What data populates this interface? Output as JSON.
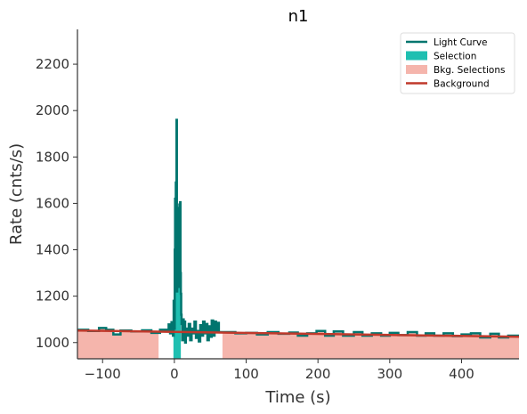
{
  "chart_data": {
    "type": "line",
    "title": "n1",
    "xlabel": "Time (s)",
    "ylabel": "Rate (cnts/s)",
    "xlim": [
      -135,
      480
    ],
    "ylim": [
      930,
      2350
    ],
    "xticks": [
      -100,
      0,
      100,
      200,
      300,
      400
    ],
    "xtick_labels": [
      "−100",
      "0",
      "100",
      "200",
      "300",
      "400"
    ],
    "yticks": [
      1000,
      1200,
      1400,
      1600,
      1800,
      2000,
      2200
    ],
    "ytick_labels": [
      "1000",
      "1200",
      "1400",
      "1600",
      "1800",
      "2000",
      "2200"
    ],
    "grid": false,
    "legend_position": "top-right",
    "colors": {
      "light_curve": "#00756e",
      "selection": "#1fbfb1",
      "bkg_selection": "#f5b5ac",
      "background": "#c0392b"
    },
    "legend": [
      {
        "label": "Light Curve",
        "kind": "line",
        "color": "#00756e"
      },
      {
        "label": "Selection",
        "kind": "patch",
        "color": "#1fbfb1"
      },
      {
        "label": "Bkg. Selections",
        "kind": "patch",
        "color": "#f5b5ac"
      },
      {
        "label": "Background",
        "kind": "line",
        "color": "#c0392b"
      }
    ],
    "selection": [
      -1.3,
      9.0
    ],
    "bkg_selections": [
      [
        -135,
        -22
      ],
      [
        67,
        480
      ]
    ],
    "background_fit": {
      "x": [
        -135,
        480
      ],
      "y": [
        1052,
        1025
      ]
    },
    "series": [
      {
        "name": "Light Curve",
        "steps": [
          [
            -135,
            1055
          ],
          [
            -120,
            1050
          ],
          [
            -105,
            1063
          ],
          [
            -95,
            1055
          ],
          [
            -85,
            1035
          ],
          [
            -75,
            1052
          ],
          [
            -60,
            1048
          ],
          [
            -45,
            1053
          ],
          [
            -32,
            1042
          ],
          [
            -20,
            1055
          ],
          [
            -10,
            1050
          ],
          [
            -8,
            1078
          ],
          [
            -6,
            1040
          ],
          [
            -4,
            1088
          ],
          [
            -2,
            1030
          ],
          [
            -1,
            1180
          ],
          [
            0,
            1060
          ],
          [
            0.5,
            1400
          ],
          [
            1,
            1620
          ],
          [
            1.5,
            1300
          ],
          [
            2,
            1690
          ],
          [
            2.5,
            1500
          ],
          [
            3,
            1960
          ],
          [
            3.5,
            1220
          ],
          [
            4,
            1480
          ],
          [
            4.5,
            1360
          ],
          [
            5,
            1540
          ],
          [
            5.5,
            1240
          ],
          [
            6,
            1580
          ],
          [
            6.5,
            1360
          ],
          [
            7,
            1595
          ],
          [
            7.5,
            1410
          ],
          [
            8,
            1605
          ],
          [
            8.5,
            1300
          ],
          [
            9,
            1210
          ],
          [
            9.5,
            1120
          ],
          [
            10,
            1080
          ],
          [
            11,
            1010
          ],
          [
            12,
            1100
          ],
          [
            13,
            1040
          ],
          [
            14,
            1090
          ],
          [
            15,
            1000
          ],
          [
            16,
            1060
          ],
          [
            18,
            1030
          ],
          [
            20,
            1080
          ],
          [
            22,
            1010
          ],
          [
            24,
            1060
          ],
          [
            26,
            1040
          ],
          [
            28,
            1090
          ],
          [
            30,
            1020
          ],
          [
            32,
            1050
          ],
          [
            34,
            1005
          ],
          [
            36,
            1075
          ],
          [
            38,
            1030
          ],
          [
            40,
            1090
          ],
          [
            42,
            1040
          ],
          [
            44,
            1080
          ],
          [
            46,
            1010
          ],
          [
            48,
            1070
          ],
          [
            50,
            1025
          ],
          [
            52,
            1095
          ],
          [
            54,
            1030
          ],
          [
            56,
            1090
          ],
          [
            58,
            1050
          ],
          [
            60,
            1085
          ],
          [
            62,
            1045
          ],
          [
            70,
            1045
          ],
          [
            85,
            1040
          ],
          [
            100,
            1042
          ],
          [
            115,
            1035
          ],
          [
            130,
            1045
          ],
          [
            145,
            1038
          ],
          [
            160,
            1043
          ],
          [
            172,
            1030
          ],
          [
            185,
            1040
          ],
          [
            198,
            1050
          ],
          [
            210,
            1030
          ],
          [
            222,
            1048
          ],
          [
            235,
            1030
          ],
          [
            250,
            1045
          ],
          [
            262,
            1030
          ],
          [
            275,
            1040
          ],
          [
            288,
            1030
          ],
          [
            300,
            1042
          ],
          [
            312,
            1032
          ],
          [
            325,
            1045
          ],
          [
            338,
            1030
          ],
          [
            350,
            1040
          ],
          [
            362,
            1030
          ],
          [
            375,
            1040
          ],
          [
            388,
            1028
          ],
          [
            400,
            1035
          ],
          [
            413,
            1040
          ],
          [
            426,
            1022
          ],
          [
            440,
            1038
          ],
          [
            452,
            1022
          ],
          [
            465,
            1030
          ],
          [
            480,
            1030
          ]
        ]
      }
    ]
  }
}
